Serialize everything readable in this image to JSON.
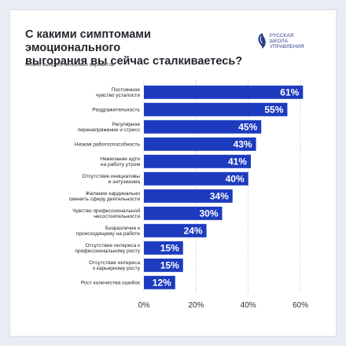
{
  "header": {
    "title_line1": "С какими симптомами эмоционального",
    "title_line2": "выгорания вы сейчас сталкиваетесь?",
    "subtitle": "Можно выбрать несколько вариантов"
  },
  "logo": {
    "line1": "РУССКАЯ",
    "line2": "ШКОЛА",
    "line3": "УПРАВЛЕНИЯ"
  },
  "colors": {
    "bar": "#1d3bbf",
    "grid": "#b9bec7",
    "background": "#e9edf3",
    "logo": "#2b3d8c"
  },
  "chart_data": {
    "type": "bar",
    "orientation": "horizontal",
    "title": "С какими симптомами эмоционального выгорания вы сейчас сталкиваетесь?",
    "subtitle": "Можно выбрать несколько вариантов",
    "categories": [
      [
        "Постоянное",
        "чувство усталости"
      ],
      [
        "Раздражительность"
      ],
      [
        "Регулярное",
        "перенапряжение и стресс"
      ],
      [
        "Низкая работоспособность"
      ],
      [
        "Нежелание идти",
        "на работу утром"
      ],
      [
        "Отсутствие инициативы",
        "и энтузиазма"
      ],
      [
        "Желание кардинально",
        "сменить сферу деятельности"
      ],
      [
        "Чувство профессиональной",
        "несостоятельности"
      ],
      [
        "Безразличие к",
        "происходящему на работе"
      ],
      [
        "Отсутствие интереса к",
        "профессиональному росту"
      ],
      [
        "Отсутствие интереса",
        "к карьерному росту"
      ],
      [
        "Рост количества ошибок"
      ]
    ],
    "values": [
      61,
      55,
      45,
      43,
      41,
      40,
      34,
      30,
      24,
      15,
      15,
      12
    ],
    "value_labels": [
      "61%",
      "55%",
      "45%",
      "43%",
      "41%",
      "40%",
      "34%",
      "30%",
      "24%",
      "15%",
      "15%",
      "12%"
    ],
    "xlim": [
      0,
      60
    ],
    "xticks": [
      0,
      20,
      40,
      60
    ],
    "xtick_labels": [
      "0%",
      "20%",
      "40%",
      "60%"
    ],
    "grid": true,
    "legend": "none"
  }
}
